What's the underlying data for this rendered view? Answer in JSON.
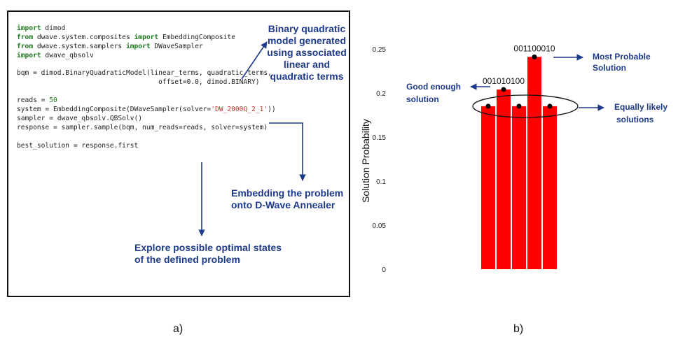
{
  "panel_a": {
    "code_lines": [
      [
        {
          "t": "import",
          "k": "kw"
        },
        {
          "t": " dimod"
        }
      ],
      [
        {
          "t": "from",
          "k": "kw"
        },
        {
          "t": " dwave.system.composites "
        },
        {
          "t": "import",
          "k": "kw"
        },
        {
          "t": " EmbeddingComposite"
        }
      ],
      [
        {
          "t": "from",
          "k": "kw"
        },
        {
          "t": " dwave.system.samplers "
        },
        {
          "t": "import",
          "k": "kw"
        },
        {
          "t": " DWaveSampler"
        }
      ],
      [
        {
          "t": "import",
          "k": "kw"
        },
        {
          "t": " dwave_qbsolv"
        }
      ],
      [],
      [
        {
          "t": "bqm = dimod.BinaryQuadraticModel(linear_terms, quadratic_terms,"
        }
      ],
      [
        {
          "t": "                                   offset=0.0, dimod.BINARY)"
        }
      ],
      [],
      [
        {
          "t": "reads = "
        },
        {
          "t": "50",
          "k": "num"
        }
      ],
      [
        {
          "t": "system = EmbeddingComposite(DWaveSampler(solver="
        },
        {
          "t": "'DW_2000Q_2_1'",
          "k": "str"
        },
        {
          "t": "))"
        }
      ],
      [
        {
          "t": "sampler = dwave_qbsolv.QBSolv()"
        }
      ],
      [
        {
          "t": "response = sampler.sample(bqm, num_reads=reads, solver=system)"
        }
      ],
      [],
      [
        {
          "t": "best_solution = response.first"
        }
      ]
    ],
    "note_bqm": [
      "Binary quadratic",
      "model generated",
      "using associated",
      "linear and",
      "quadratic terms"
    ],
    "note_embed": [
      "Embedding the problem",
      "onto D-Wave Annealer"
    ],
    "note_explore": [
      "Explore possible optimal states",
      "of the defined problem"
    ],
    "caption": "a)"
  },
  "panel_b": {
    "caption": "b)",
    "annotations": {
      "most_probable": [
        "Most Probable",
        "Solution"
      ],
      "good_enough": [
        "Good enough",
        "solution"
      ],
      "equally_likely": [
        "Equally likely",
        "solutions"
      ]
    },
    "colors": {
      "bar": "#ff0000",
      "point": "#000000",
      "annotation": "#1e3a8a"
    }
  },
  "chart_data": {
    "type": "bar",
    "ylabel": "Solution Probability",
    "xlabel": "",
    "ylim": [
      0,
      0.25
    ],
    "yticks": [
      "0",
      "0.05",
      "0.1",
      "0.15",
      "0.2",
      "0.25"
    ],
    "categories": [
      "",
      "001010100",
      "",
      "001100010",
      ""
    ],
    "values": [
      0.185,
      0.204,
      0.185,
      0.241,
      0.185
    ],
    "grid": false
  }
}
